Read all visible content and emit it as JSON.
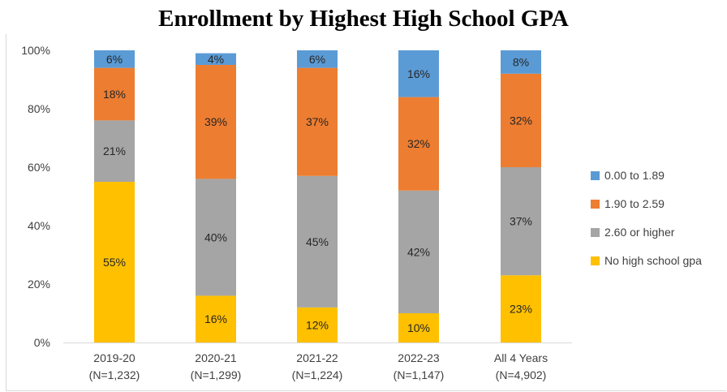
{
  "chart_data": {
    "type": "bar",
    "stacked": true,
    "percent": true,
    "title": "Enrollment by Highest High School GPA",
    "categories": [
      [
        "2019-20",
        "(N=1,232)"
      ],
      [
        "2020-21",
        "(N=1,299)"
      ],
      [
        "2021-22",
        "(N=1,224)"
      ],
      [
        "2022-23",
        "(N=1,147)"
      ],
      [
        "All 4 Years",
        "(N=4,902)"
      ]
    ],
    "ylim": [
      0,
      100
    ],
    "yticks": [
      "0%",
      "20%",
      "40%",
      "60%",
      "80%",
      "100%"
    ],
    "grid": false,
    "legend_position": "right",
    "series": [
      {
        "name": "No high school gpa",
        "color": "#ffc000",
        "values": [
          55,
          16,
          12,
          10,
          23
        ]
      },
      {
        "name": "2.60 or higher",
        "color": "#a5a5a5",
        "values": [
          21,
          40,
          45,
          42,
          37
        ]
      },
      {
        "name": "1.90 to 2.59",
        "color": "#ed7d31",
        "values": [
          18,
          39,
          37,
          32,
          32
        ]
      },
      {
        "name": "0.00 to 1.89",
        "color": "#5b9bd5",
        "values": [
          6,
          4,
          6,
          16,
          8
        ]
      }
    ]
  }
}
